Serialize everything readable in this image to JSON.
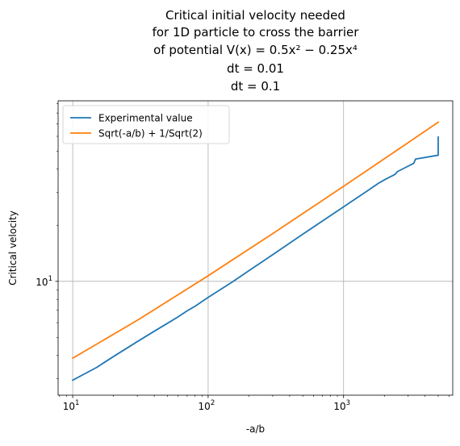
{
  "chart_data": {
    "type": "line",
    "title_lines": [
      "Critical initial velocity needed",
      "for 1D particle to cross the barrier",
      "of potential V(x) = 0.5x² − 0.25x⁴",
      "dt = 0.01",
      "dt = 0.1"
    ],
    "xlabel": "-a/b",
    "ylabel": "Critical velocity",
    "xscale": "log",
    "yscale": "log",
    "xlim": [
      7.8,
      6400
    ],
    "ylim": [
      2.45,
      93
    ],
    "x_major_ticks": [
      {
        "value": 10,
        "base": "10",
        "exp": "1"
      },
      {
        "value": 100,
        "base": "10",
        "exp": "2"
      },
      {
        "value": 1000,
        "base": "10",
        "exp": "3"
      }
    ],
    "y_major_ticks": [
      {
        "value": 10,
        "base": "10",
        "exp": "1"
      }
    ],
    "grid": true,
    "legend_position": "top-left",
    "series": [
      {
        "name": "Experimental value",
        "color": "#1f77b4",
        "x": [
          10,
          15,
          20,
          30,
          40,
          50,
          60,
          70,
          80,
          100,
          150,
          200,
          300,
          500,
          700,
          1000,
          1500,
          1800,
          2000,
          2400,
          2500,
          3000,
          3300,
          3400,
          5000,
          5000
        ],
        "y": [
          2.95,
          3.45,
          3.95,
          4.75,
          5.4,
          5.95,
          6.45,
          6.95,
          7.35,
          8.2,
          9.9,
          11.4,
          13.9,
          17.9,
          21.1,
          25.1,
          30.6,
          33.5,
          35.0,
          37.5,
          38.8,
          41.5,
          43.0,
          45.3,
          47.5,
          59.4
        ]
      },
      {
        "name": "Sqrt(-a/b) + 1/Sqrt(2)",
        "color": "#ff7f0e",
        "x": [
          10,
          30,
          100,
          300,
          1000,
          3000,
          5000
        ],
        "y": [
          3.87,
          6.18,
          10.71,
          18.03,
          32.33,
          55.48,
          71.42
        ]
      }
    ]
  }
}
